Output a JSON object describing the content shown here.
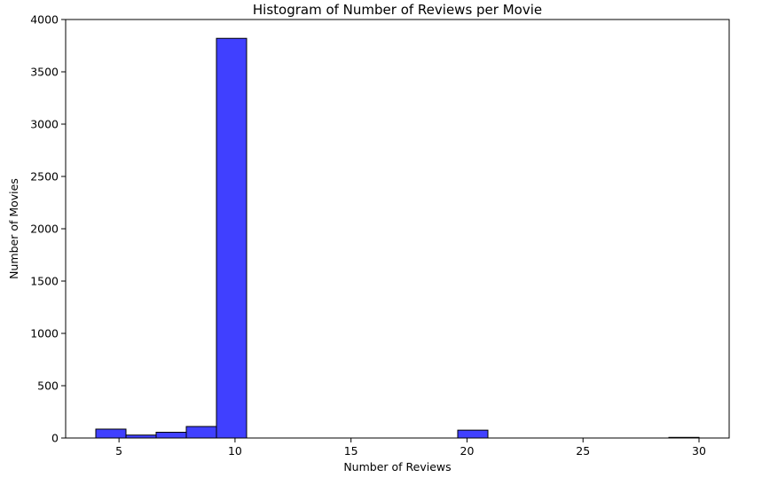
{
  "chart_data": {
    "type": "bar",
    "subtype": "histogram",
    "title": "Histogram of Number of Reviews per Movie",
    "xlabel": "Number of Reviews",
    "ylabel": "Number of Movies",
    "xlim": [
      2.7,
      31.3
    ],
    "ylim": [
      0,
      4000
    ],
    "xticks": [
      5,
      10,
      15,
      20,
      25,
      30
    ],
    "yticks": [
      0,
      500,
      1000,
      1500,
      2000,
      2500,
      3000,
      3500,
      4000
    ],
    "grid": false,
    "legend": "none",
    "bin_edges": [
      4.0,
      5.3,
      6.6,
      7.9,
      9.2,
      10.5,
      11.8,
      13.1,
      14.4,
      15.7,
      17.0,
      18.3,
      19.6,
      20.9,
      22.2,
      23.5,
      24.8,
      26.1,
      27.4,
      28.7,
      30.0
    ],
    "values": [
      85,
      28,
      55,
      110,
      3820,
      0,
      0,
      0,
      0,
      0,
      0,
      0,
      75,
      0,
      0,
      0,
      0,
      0,
      0,
      6
    ],
    "colors": {
      "bar_fill": "#4040ff",
      "bar_edge": "#000000",
      "axes": "#000000",
      "background": "#ffffff"
    }
  }
}
